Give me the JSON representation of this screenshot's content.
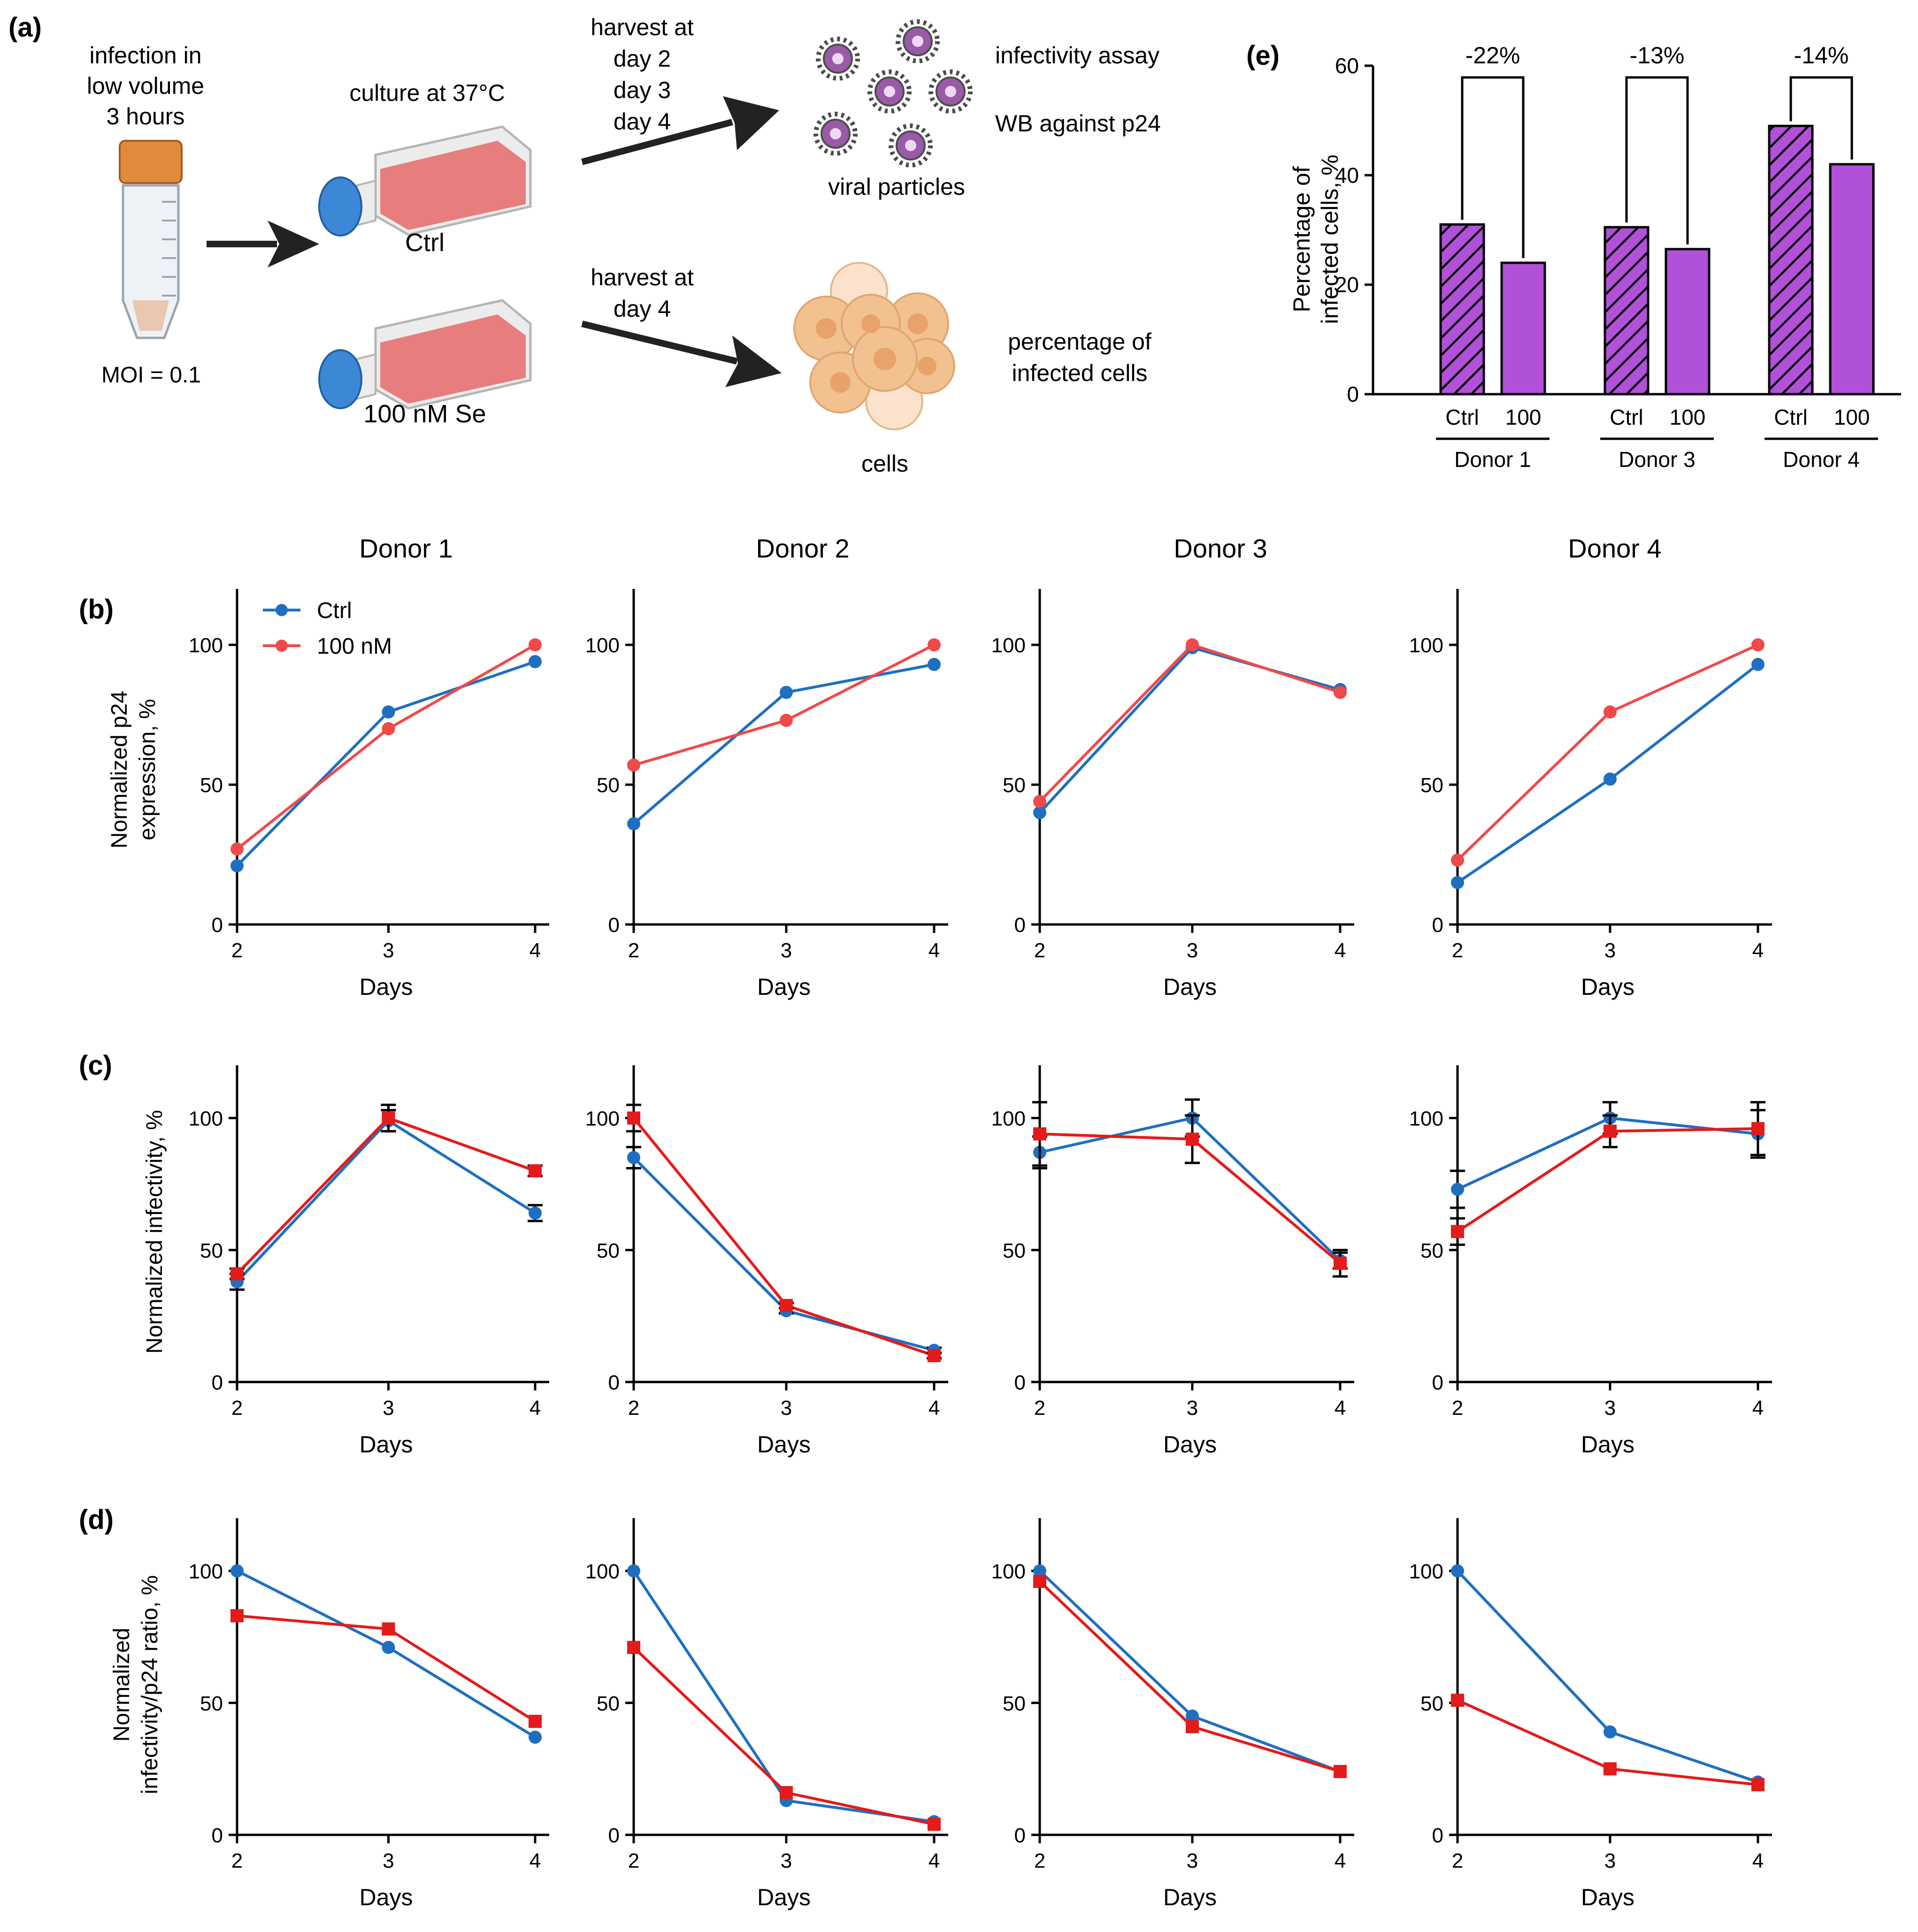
{
  "panel_letters": {
    "a": "(a)",
    "b": "(b)",
    "c": "(c)",
    "d": "(d)",
    "e": "(e)"
  },
  "schematic": {
    "infection_lines": [
      "infection in",
      "low volume",
      "3 hours"
    ],
    "moi": "MOI = 0.1",
    "culture": "culture at 37°C",
    "ctrl_label": "Ctrl",
    "se_label": "100 nM Se",
    "harvest_top_lines": [
      "harvest at",
      "day 2",
      "day 3",
      "day 4"
    ],
    "harvest_bottom_lines": [
      "harvest at",
      "day 4"
    ],
    "infectivity_assay": "infectivity assay",
    "wb": "WB against p24",
    "viral_particles": "viral particles",
    "percentage_lines": [
      "percentage of",
      "infected cells"
    ],
    "cells": "cells"
  },
  "colors": {
    "ctrl": "#1f6fc1",
    "treated_b": "#ef4a4a",
    "treated_cd": "#e41b1b",
    "bar": "#b150d8",
    "axis": "#000000",
    "flask_body": "#e86a6a",
    "flask_cap": "#3d88d6",
    "tube_cap": "#e08a3c",
    "virus": "#9a5aa8",
    "cell": "#f2c190"
  },
  "donor_titles": [
    "Donor 1",
    "Donor 2",
    "Donor 3",
    "Donor 4"
  ],
  "legend": {
    "ctrl": "Ctrl",
    "treated": "100 nM"
  },
  "chart_data": [
    {
      "panel": "b",
      "type": "line",
      "ylabel_lines": [
        "Normalized p24",
        "expression, %"
      ],
      "xlabel": "Days",
      "x": [
        2,
        3,
        4
      ],
      "ylim": [
        0,
        120
      ],
      "yticks": [
        0,
        50,
        100
      ],
      "marker": "circle",
      "donors": [
        {
          "title": "Donor 1",
          "series": [
            {
              "name": "Ctrl",
              "values": [
                21,
                76,
                94
              ]
            },
            {
              "name": "100 nM",
              "values": [
                27,
                70,
                100
              ]
            }
          ]
        },
        {
          "title": "Donor 2",
          "series": [
            {
              "name": "Ctrl",
              "values": [
                36,
                83,
                93
              ]
            },
            {
              "name": "100 nM",
              "values": [
                57,
                73,
                100
              ]
            }
          ]
        },
        {
          "title": "Donor 3",
          "series": [
            {
              "name": "Ctrl",
              "values": [
                40,
                99,
                84
              ]
            },
            {
              "name": "100 nM",
              "values": [
                44,
                100,
                83
              ]
            }
          ]
        },
        {
          "title": "Donor 4",
          "series": [
            {
              "name": "Ctrl",
              "values": [
                15,
                52,
                93
              ]
            },
            {
              "name": "100 nM",
              "values": [
                23,
                76,
                100
              ]
            }
          ]
        }
      ]
    },
    {
      "panel": "c",
      "type": "line",
      "ylabel_lines": [
        "Normalized infectivity, %"
      ],
      "xlabel": "Days",
      "x": [
        2,
        3,
        4
      ],
      "ylim": [
        0,
        120
      ],
      "yticks": [
        0,
        50,
        100
      ],
      "ctrl_marker": "circle",
      "treated_marker": "square",
      "donors": [
        {
          "title": "Donor 1",
          "series": [
            {
              "name": "Ctrl",
              "values": [
                38,
                99,
                64
              ],
              "errors": [
                3,
                4,
                3
              ]
            },
            {
              "name": "100 nM",
              "values": [
                41,
                100,
                80
              ],
              "errors": [
                2,
                5,
                2
              ]
            }
          ]
        },
        {
          "title": "Donor 2",
          "series": [
            {
              "name": "Ctrl",
              "values": [
                85,
                27,
                12
              ],
              "errors": [
                4,
                1,
                1
              ]
            },
            {
              "name": "100 nM",
              "values": [
                100,
                29,
                10
              ],
              "errors": [
                5,
                1,
                1
              ]
            }
          ]
        },
        {
          "title": "Donor 3",
          "series": [
            {
              "name": "Ctrl",
              "values": [
                87,
                100,
                46
              ],
              "errors": [
                6,
                7,
                3
              ]
            },
            {
              "name": "100 nM",
              "values": [
                94,
                92,
                45
              ],
              "errors": [
                12,
                9,
                5
              ]
            }
          ]
        },
        {
          "title": "Donor 4",
          "series": [
            {
              "name": "Ctrl",
              "values": [
                73,
                100,
                94
              ],
              "errors": [
                7,
                6,
                9
              ]
            },
            {
              "name": "100 nM",
              "values": [
                57,
                95,
                96
              ],
              "errors": [
                5,
                6,
                10
              ]
            }
          ]
        }
      ]
    },
    {
      "panel": "d",
      "type": "line",
      "ylabel_lines": [
        "Normalized",
        "infectivity/p24 ratio, %"
      ],
      "xlabel": "Days",
      "x": [
        2,
        3,
        4
      ],
      "ylim": [
        0,
        120
      ],
      "yticks": [
        0,
        50,
        100
      ],
      "ctrl_marker": "circle",
      "treated_marker": "square",
      "donors": [
        {
          "title": "Donor 1",
          "series": [
            {
              "name": "Ctrl",
              "values": [
                100,
                71,
                37
              ]
            },
            {
              "name": "100 nM",
              "values": [
                83,
                78,
                43
              ]
            }
          ]
        },
        {
          "title": "Donor 2",
          "series": [
            {
              "name": "Ctrl",
              "values": [
                100,
                13,
                5
              ]
            },
            {
              "name": "100 nM",
              "values": [
                71,
                16,
                4
              ]
            }
          ]
        },
        {
          "title": "Donor 3",
          "series": [
            {
              "name": "Ctrl",
              "values": [
                100,
                45,
                24
              ]
            },
            {
              "name": "100 nM",
              "values": [
                96,
                41,
                24
              ]
            }
          ]
        },
        {
          "title": "Donor 4",
          "series": [
            {
              "name": "Ctrl",
              "values": [
                100,
                39,
                20
              ]
            },
            {
              "name": "100 nM",
              "values": [
                51,
                25,
                19
              ]
            }
          ]
        }
      ]
    },
    {
      "panel": "e",
      "type": "bar",
      "ylabel_lines": [
        "Percentage of",
        "infected cells, %"
      ],
      "ylim": [
        0,
        60
      ],
      "yticks": [
        0,
        20,
        40,
        60
      ],
      "bar_labels": [
        "Ctrl",
        "100"
      ],
      "groups": [
        {
          "name": "Donor 1",
          "values": [
            31,
            24
          ],
          "change": "-22%"
        },
        {
          "name": "Donor 3",
          "values": [
            30.5,
            26.5
          ],
          "change": "-13%"
        },
        {
          "name": "Donor 4",
          "values": [
            49,
            42
          ],
          "change": "-14%"
        }
      ]
    }
  ]
}
